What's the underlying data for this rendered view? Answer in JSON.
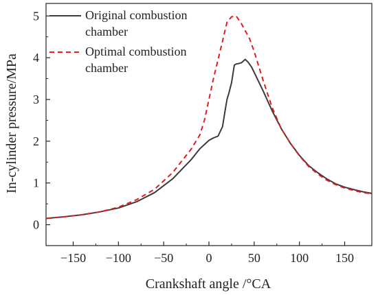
{
  "chart_data": {
    "type": "line",
    "xlabel": "Crankshaft angle /°CA",
    "ylabel": "In-cylinder pressure/MPa",
    "xlim": [
      -180,
      180
    ],
    "ylim": [
      -0.5,
      5.3
    ],
    "xticks": [
      -150,
      -100,
      -50,
      0,
      50,
      100,
      150
    ],
    "yticks": [
      0,
      1,
      2,
      3,
      4,
      5
    ],
    "grid": false,
    "legend_position": "top-left",
    "series": [
      {
        "name": "Original combustion chamber",
        "color": "#3a3a3a",
        "dash": "solid",
        "x": [
          -180,
          -160,
          -140,
          -120,
          -100,
          -80,
          -60,
          -40,
          -20,
          -10,
          0,
          5,
          10,
          15,
          18,
          20,
          22,
          25,
          28,
          30,
          33,
          36,
          40,
          43,
          47,
          50,
          60,
          70,
          80,
          90,
          100,
          110,
          120,
          130,
          140,
          150,
          160,
          170,
          180
        ],
        "y": [
          0.15,
          0.19,
          0.24,
          0.31,
          0.4,
          0.55,
          0.77,
          1.1,
          1.55,
          1.82,
          2.02,
          2.08,
          2.12,
          2.35,
          2.75,
          3.0,
          3.15,
          3.4,
          3.82,
          3.85,
          3.86,
          3.88,
          3.96,
          3.9,
          3.78,
          3.65,
          3.2,
          2.72,
          2.3,
          1.95,
          1.66,
          1.42,
          1.25,
          1.1,
          0.98,
          0.9,
          0.84,
          0.79,
          0.75
        ]
      },
      {
        "name": "Optimal combustion chamber",
        "color": "#e41a1c",
        "dash": "dashed",
        "x": [
          -180,
          -160,
          -140,
          -120,
          -100,
          -80,
          -60,
          -40,
          -20,
          -10,
          -5,
          0,
          5,
          10,
          15,
          20,
          25,
          30,
          35,
          40,
          45,
          50,
          60,
          70,
          80,
          90,
          100,
          110,
          120,
          130,
          140,
          150,
          160,
          170,
          180
        ],
        "y": [
          0.15,
          0.19,
          0.24,
          0.31,
          0.42,
          0.6,
          0.85,
          1.25,
          1.8,
          2.15,
          2.5,
          3.0,
          3.5,
          3.95,
          4.4,
          4.85,
          4.98,
          5.0,
          4.85,
          4.65,
          4.45,
          4.15,
          3.45,
          2.8,
          2.3,
          1.95,
          1.65,
          1.4,
          1.22,
          1.07,
          0.96,
          0.88,
          0.82,
          0.77,
          0.74
        ]
      }
    ]
  }
}
